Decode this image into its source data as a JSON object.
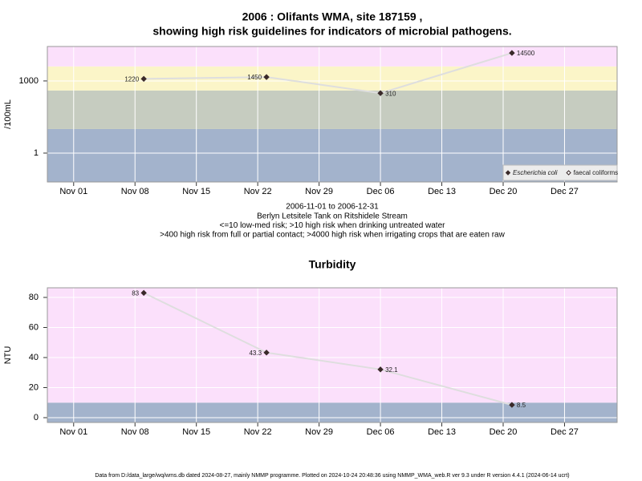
{
  "chart_data": [
    {
      "type": "line",
      "title": [
        "2006 : Olifants WMA, site 187159 ,",
        "showing high risk guidelines for indicators of microbial pathogens."
      ],
      "ylabel": "/100mL",
      "log_scale": true,
      "x": [
        "2006-11-09",
        "2006-11-23",
        "2006-12-06",
        "2006-12-21"
      ],
      "series": [
        {
          "name": "Escherichia coli",
          "color": "#3a2a2a",
          "values": [
            1220,
            1450,
            310,
            14500
          ]
        },
        {
          "name": "faecal coliforms",
          "color": "#3a2a2a",
          "values": [
            null,
            null,
            null,
            null
          ]
        }
      ],
      "line_color": "#dedede",
      "xlim": [
        "2006-10-29",
        "2007-01-02"
      ],
      "xticks": [
        {
          "value": "2006-11-01",
          "label": "Nov 01"
        },
        {
          "value": "2006-11-08",
          "label": "Nov 08"
        },
        {
          "value": "2006-11-15",
          "label": "Nov 15"
        },
        {
          "value": "2006-11-22",
          "label": "Nov 22"
        },
        {
          "value": "2006-11-29",
          "label": "Nov 29"
        },
        {
          "value": "2006-12-06",
          "label": "Dec 06"
        },
        {
          "value": "2006-12-13",
          "label": "Dec 13"
        },
        {
          "value": "2006-12-20",
          "label": "Dec 20"
        },
        {
          "value": "2006-12-27",
          "label": "Dec 27"
        }
      ],
      "ylim": [
        0.063,
        27000
      ],
      "yticks": [
        1,
        1000
      ],
      "grid": true,
      "band_limits": [
        10,
        400,
        4000
      ],
      "band_colors": [
        "#a3b3cc",
        "#c6ccc0",
        "#fbf5c8",
        "#fbe0fb"
      ],
      "legend": "bottom-right",
      "notes": [
        "2006-11-01 to 2006-12-31",
        "Berlyn Letsitele Tank on Ritshidele Stream",
        "<=10 low-med risk; >10 high risk when drinking untreated water",
        ">400 high risk from full or partial contact; >4000 high risk when irrigating crops that are eaten raw"
      ]
    },
    {
      "type": "line",
      "title": [
        "Turbidity"
      ],
      "ylabel": "NTU",
      "log_scale": false,
      "x": [
        "2006-11-09",
        "2006-11-23",
        "2006-12-06",
        "2006-12-21"
      ],
      "values": [
        83,
        43.3,
        32.1,
        8.5
      ],
      "color": "#3a2a2a",
      "line_color": "#dedede",
      "xlim": [
        "2006-10-29",
        "2007-01-02"
      ],
      "xticks": [
        {
          "value": "2006-11-01",
          "label": "Nov 01"
        },
        {
          "value": "2006-11-08",
          "label": "Nov 08"
        },
        {
          "value": "2006-11-15",
          "label": "Nov 15"
        },
        {
          "value": "2006-11-22",
          "label": "Nov 22"
        },
        {
          "value": "2006-11-29",
          "label": "Nov 29"
        },
        {
          "value": "2006-12-06",
          "label": "Dec 06"
        },
        {
          "value": "2006-12-13",
          "label": "Dec 13"
        },
        {
          "value": "2006-12-20",
          "label": "Dec 20"
        },
        {
          "value": "2006-12-27",
          "label": "Dec 27"
        }
      ],
      "ylim": [
        -3.2,
        86.4
      ],
      "yticks": [
        0,
        20,
        40,
        60,
        80
      ],
      "grid": true,
      "band_limits": [
        10
      ],
      "band_colors": [
        "#a3b3cc",
        "#fbe0fb"
      ]
    }
  ],
  "footer": "Data from D:/data_large/wq/wms.db dated 2024-08-27, mainly NMMP programme. Plotted on 2024-10-24 20:48:36 using NMMP_WMA_web.R ver 9.3 under R version 4.4.1 (2024-06-14 ucrt)"
}
